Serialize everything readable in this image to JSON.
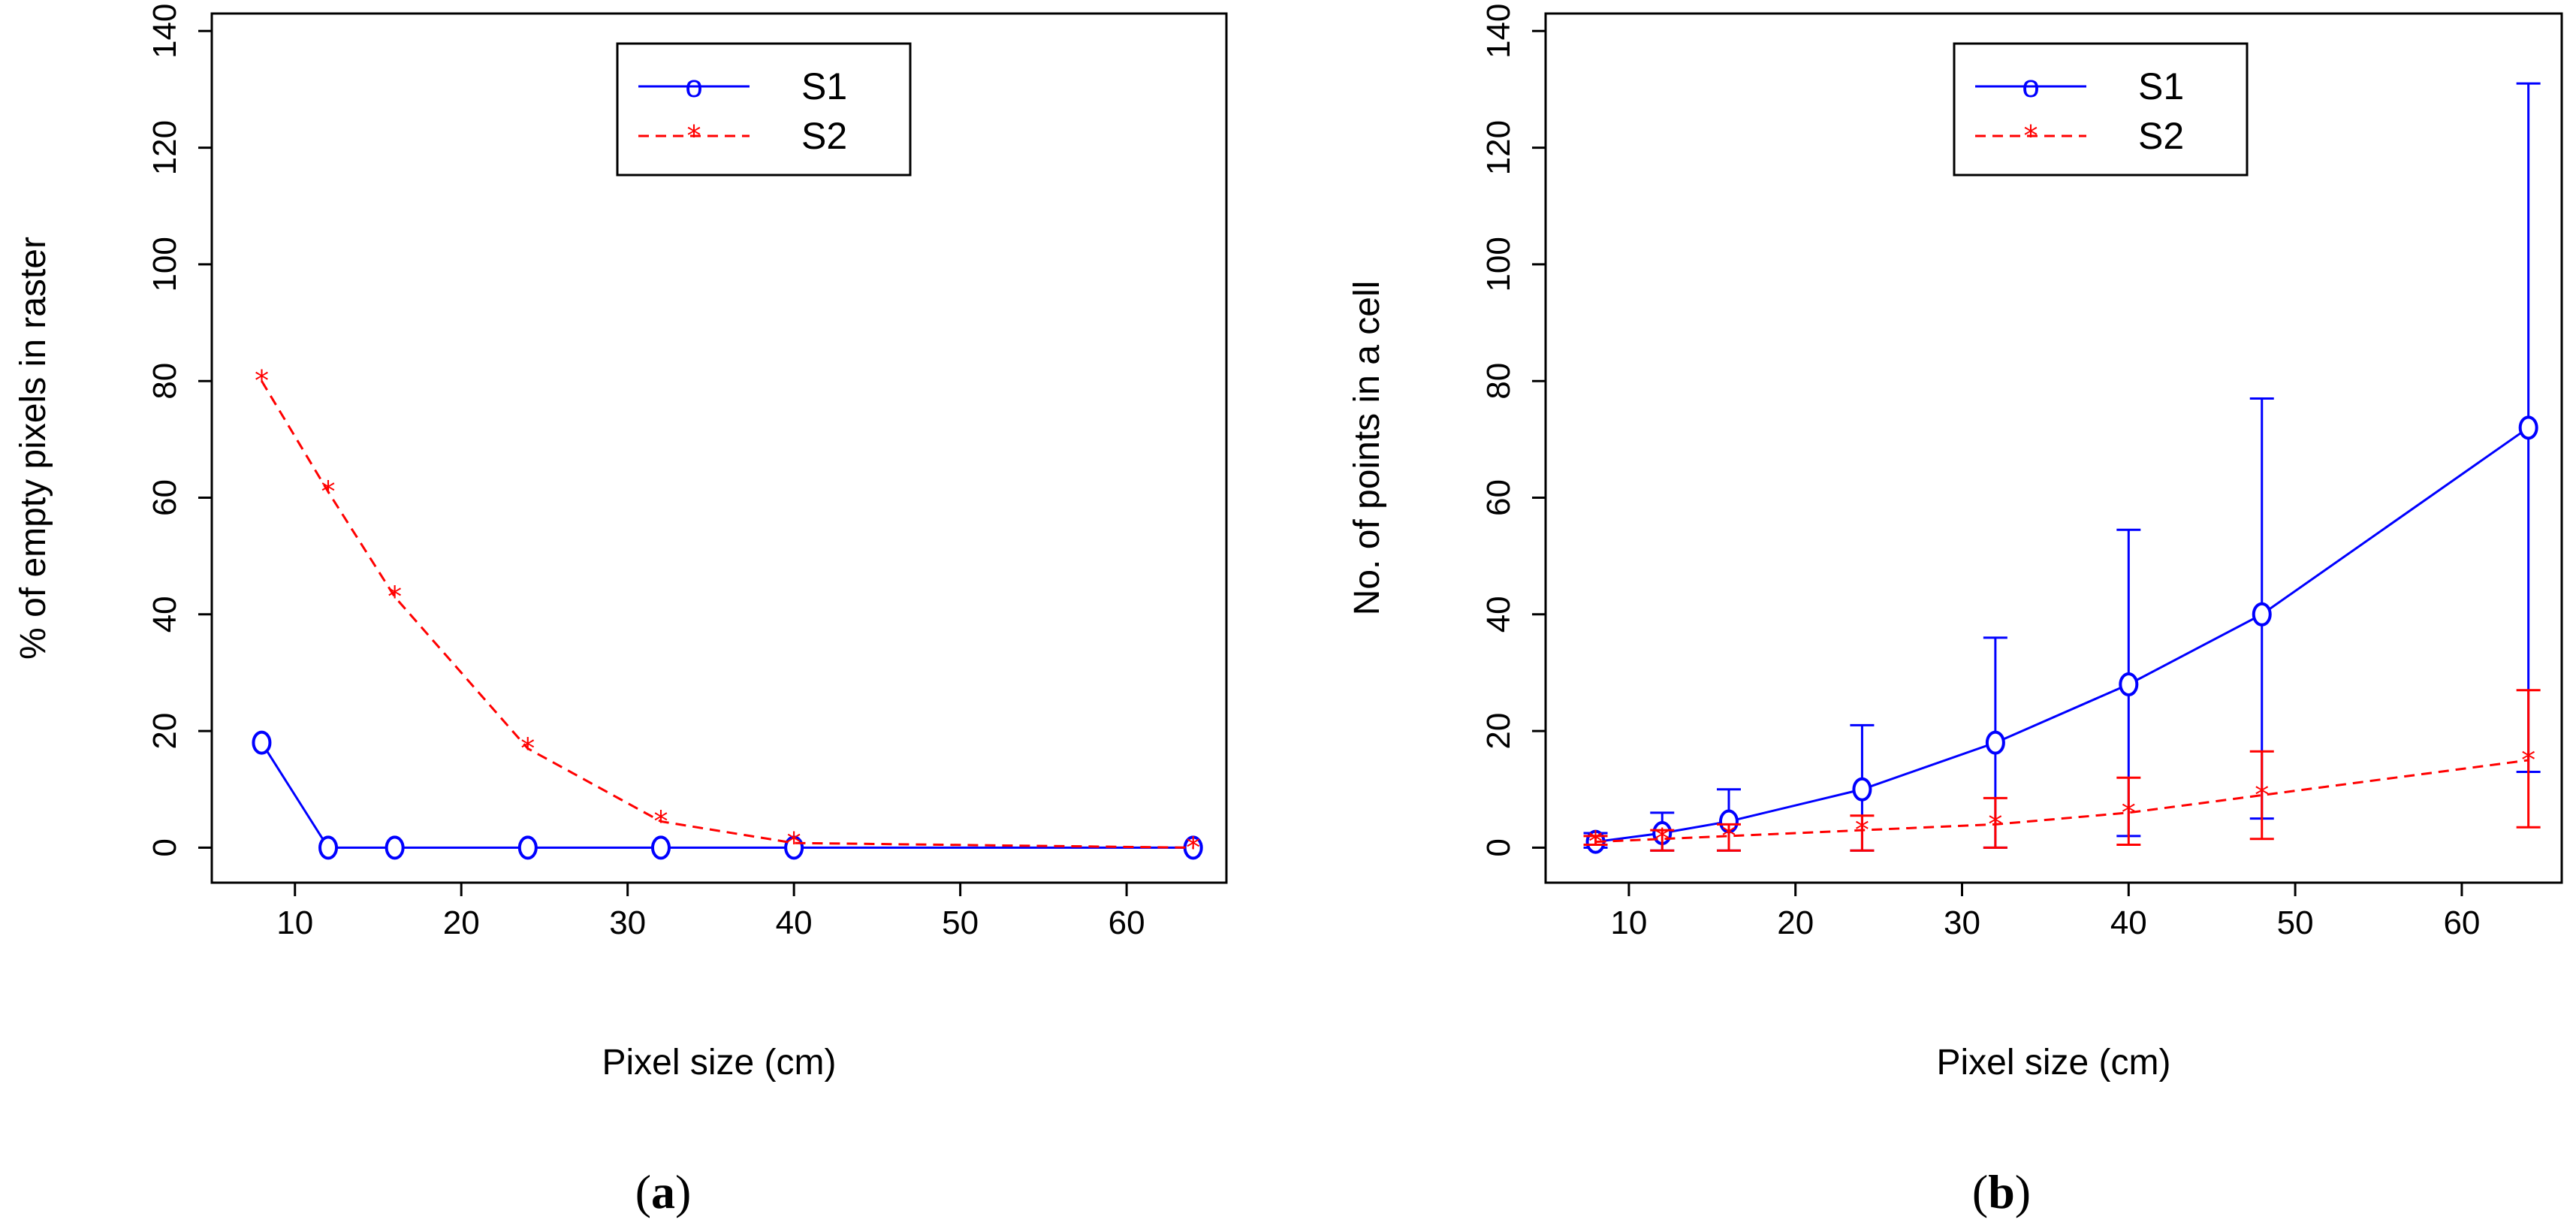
{
  "chart_data": [
    {
      "type": "line",
      "panel_label": "(a)",
      "panel_letter": "a",
      "xlabel": "Pixel size (cm)",
      "ylabel": "% of empty pixels in raster",
      "xlim": [
        5,
        66
      ],
      "ylim": [
        -6,
        143
      ],
      "xticks": [
        10,
        20,
        30,
        40,
        50,
        60
      ],
      "yticks": [
        0,
        20,
        40,
        60,
        80,
        100,
        120,
        140
      ],
      "legend_position": "top-center",
      "series": [
        {
          "name": "S1",
          "color": "#0000ff",
          "line_style": "solid",
          "marker": "o",
          "x": [
            8,
            12,
            16,
            24,
            32,
            40,
            64
          ],
          "y": [
            18,
            0,
            0,
            0,
            0,
            0,
            0
          ]
        },
        {
          "name": "S2",
          "color": "#ff0000",
          "line_style": "dashed",
          "marker": "*",
          "x": [
            8,
            12,
            16,
            24,
            32,
            40,
            64
          ],
          "y": [
            80,
            61,
            43,
            17,
            4.5,
            0.8,
            0
          ]
        }
      ]
    },
    {
      "type": "line",
      "panel_label": "(b)",
      "panel_letter": "b",
      "xlabel": "Pixel size (cm)",
      "ylabel": "No. of points in a cell",
      "xlim": [
        5,
        66
      ],
      "ylim": [
        -6,
        143
      ],
      "xticks": [
        10,
        20,
        30,
        40,
        50,
        60
      ],
      "yticks": [
        0,
        20,
        40,
        60,
        80,
        100,
        120,
        140
      ],
      "legend_position": "top-center",
      "series": [
        {
          "name": "S1",
          "color": "#0000ff",
          "line_style": "solid",
          "marker": "o",
          "x": [
            8,
            12,
            16,
            24,
            32,
            40,
            48,
            64
          ],
          "y": [
            1,
            2.5,
            4.5,
            10,
            18,
            28,
            40,
            72
          ],
          "error_low": [
            0,
            -0.5,
            -0.5,
            -0.5,
            0,
            2,
            5,
            13
          ],
          "error_high": [
            2.5,
            6,
            10,
            21,
            36,
            54.5,
            77,
            131
          ]
        },
        {
          "name": "S2",
          "color": "#ff0000",
          "line_style": "dashed",
          "marker": "*",
          "x": [
            8,
            12,
            16,
            24,
            32,
            40,
            48,
            64
          ],
          "y": [
            1,
            1.5,
            2,
            3,
            4,
            6,
            9,
            15
          ],
          "error_low": [
            0.5,
            -0.5,
            -0.5,
            -0.5,
            0,
            0.5,
            1.5,
            3.5
          ],
          "error_high": [
            2,
            3,
            4,
            5.5,
            8.5,
            12,
            16.5,
            27
          ]
        }
      ]
    }
  ]
}
